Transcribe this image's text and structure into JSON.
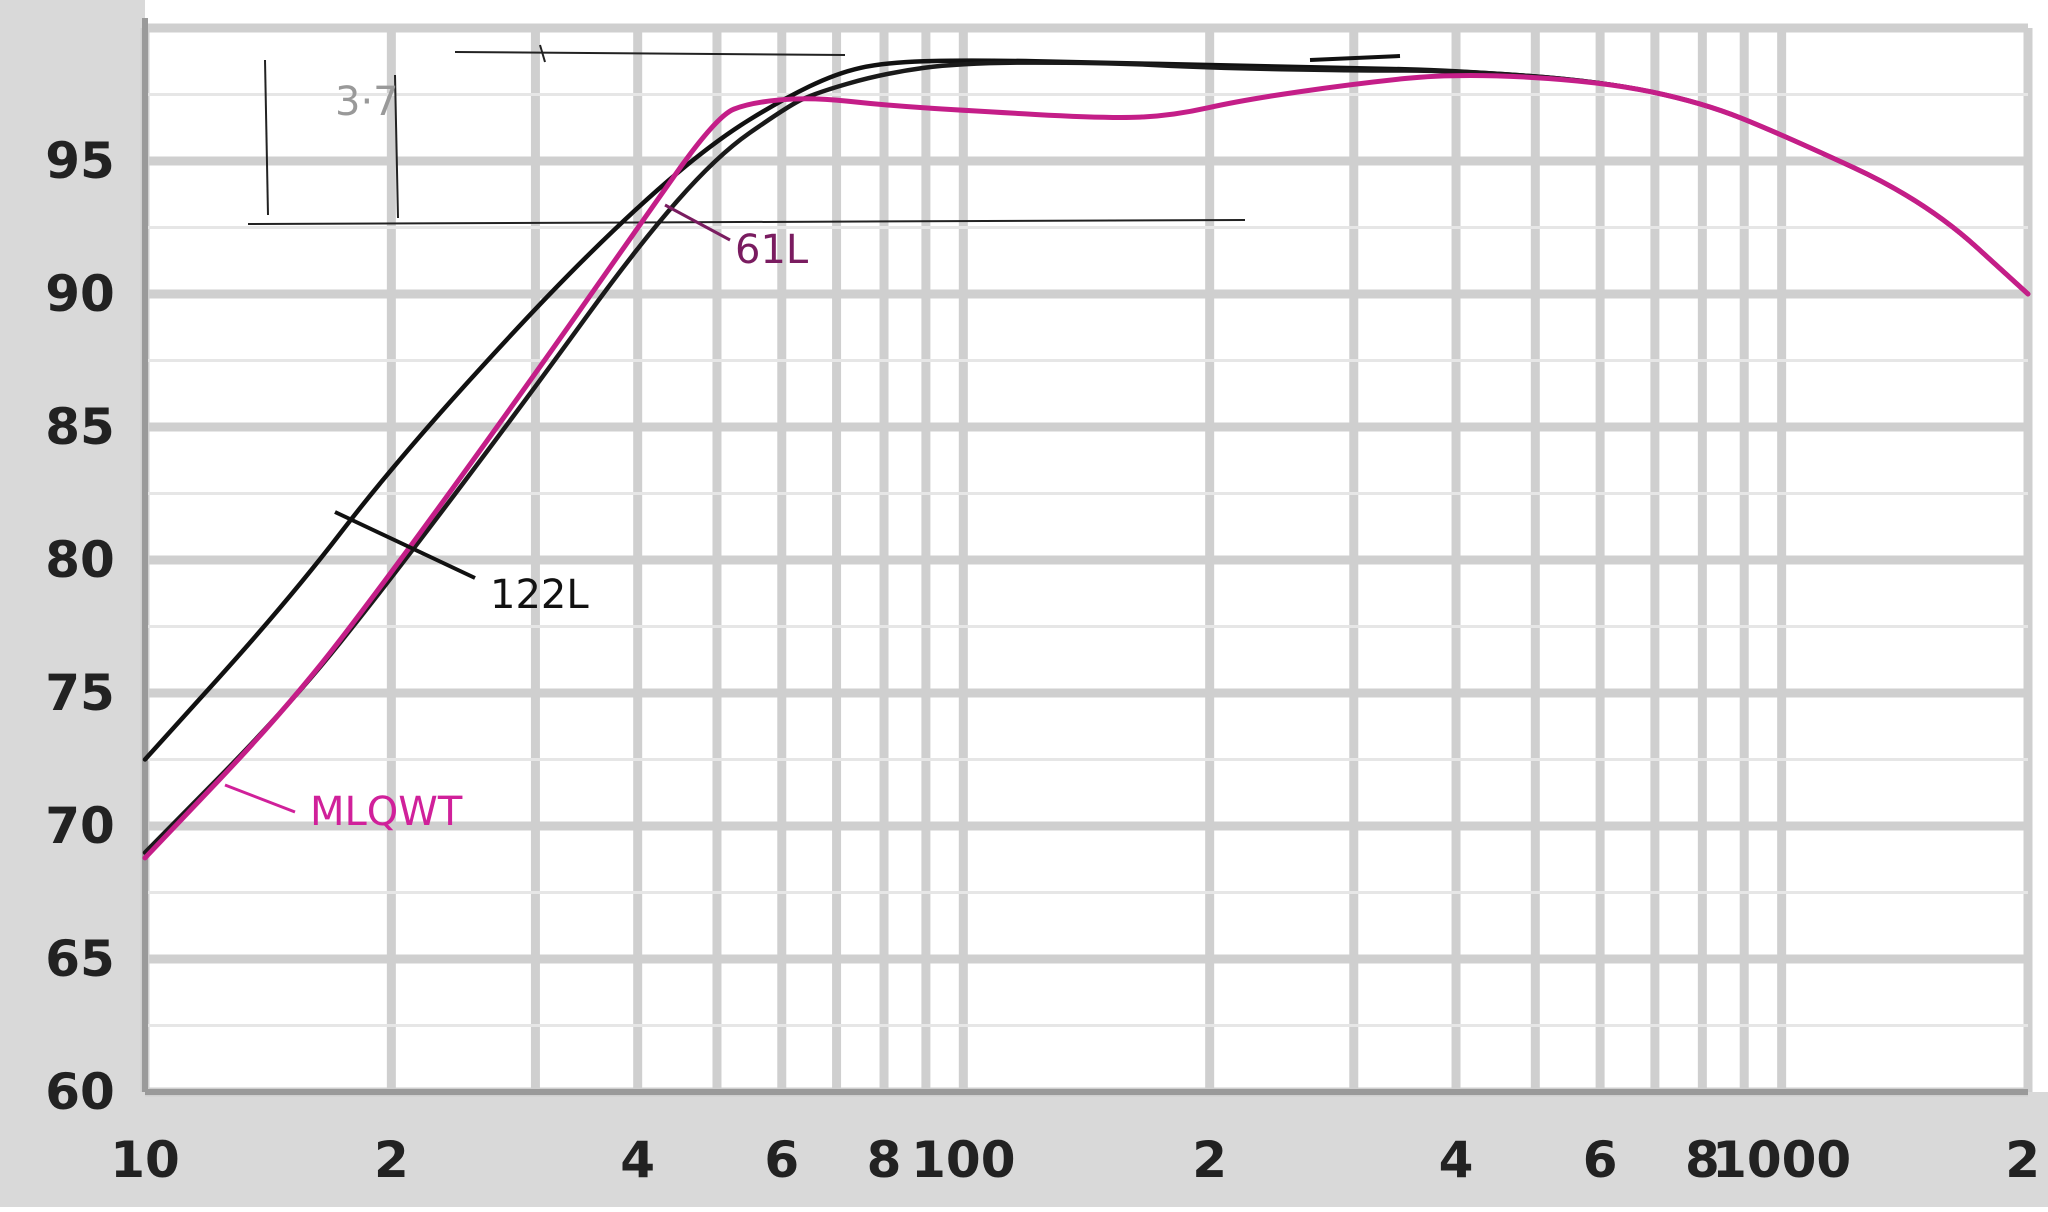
{
  "chart_data": {
    "type": "line",
    "title": "",
    "xlabel": "",
    "ylabel": "",
    "x_scale": "log",
    "xlim": [
      10,
      2000
    ],
    "ylim": [
      60,
      100
    ],
    "grid": true,
    "y_ticks": [
      {
        "value": 60,
        "label": "60"
      },
      {
        "value": 65,
        "label": "65"
      },
      {
        "value": 70,
        "label": "70"
      },
      {
        "value": 75,
        "label": "75"
      },
      {
        "value": 80,
        "label": "80"
      },
      {
        "value": 85,
        "label": "85"
      },
      {
        "value": 90,
        "label": "90"
      },
      {
        "value": 95,
        "label": "95"
      }
    ],
    "x_ticks": [
      {
        "value": 10,
        "label": "10"
      },
      {
        "value": 20,
        "label": "2"
      },
      {
        "value": 40,
        "label": "4"
      },
      {
        "value": 60,
        "label": "6"
      },
      {
        "value": 80,
        "label": "8"
      },
      {
        "value": 100,
        "label": "100"
      },
      {
        "value": 200,
        "label": "2"
      },
      {
        "value": 400,
        "label": "4"
      },
      {
        "value": 600,
        "label": "6"
      },
      {
        "value": 800,
        "label": "8"
      },
      {
        "value": 1000,
        "label": "1000"
      },
      {
        "value": 2000,
        "label": "2"
      }
    ],
    "series": [
      {
        "name": "122L",
        "color": "#111111",
        "points": [
          [
            10,
            72.5
          ],
          [
            15,
            78.5
          ],
          [
            20,
            83.5
          ],
          [
            30,
            89.5
          ],
          [
            40,
            93.3
          ],
          [
            50,
            95.8
          ],
          [
            60,
            97.3
          ],
          [
            70,
            98.3
          ],
          [
            80,
            98.7
          ],
          [
            100,
            98.8
          ],
          [
            150,
            98.7
          ],
          [
            200,
            98.6
          ],
          [
            300,
            98.5
          ],
          [
            400,
            98.4
          ],
          [
            600,
            98.0
          ],
          [
            800,
            97.2
          ],
          [
            1000,
            96.0
          ],
          [
            1500,
            93.5
          ],
          [
            2000,
            90.0
          ]
        ]
      },
      {
        "name": "61L",
        "color": "#1a1a1a",
        "points": [
          [
            10,
            69.0
          ],
          [
            15,
            74.5
          ],
          [
            20,
            79.3
          ],
          [
            30,
            86.5
          ],
          [
            40,
            91.8
          ],
          [
            50,
            95.2
          ],
          [
            60,
            96.9
          ],
          [
            65,
            97.5
          ],
          [
            80,
            98.3
          ],
          [
            100,
            98.7
          ],
          [
            150,
            98.7
          ],
          [
            200,
            98.5
          ],
          [
            300,
            98.4
          ],
          [
            400,
            98.4
          ],
          [
            600,
            98.0
          ],
          [
            800,
            97.2
          ],
          [
            1000,
            96.0
          ],
          [
            1500,
            93.5
          ],
          [
            2000,
            90.0
          ]
        ]
      },
      {
        "name": "MLQWT",
        "color": "#c41e88",
        "points": [
          [
            10,
            68.8
          ],
          [
            15,
            74.5
          ],
          [
            20,
            79.5
          ],
          [
            30,
            87.0
          ],
          [
            40,
            92.5
          ],
          [
            50,
            96.7
          ],
          [
            55,
            97.2
          ],
          [
            65,
            97.4
          ],
          [
            80,
            97.1
          ],
          [
            100,
            96.9
          ],
          [
            150,
            96.6
          ],
          [
            180,
            96.7
          ],
          [
            220,
            97.3
          ],
          [
            300,
            97.9
          ],
          [
            400,
            98.3
          ],
          [
            600,
            98.0
          ],
          [
            800,
            97.2
          ],
          [
            1000,
            96.0
          ],
          [
            1500,
            93.5
          ],
          [
            2000,
            90.0
          ]
        ]
      }
    ],
    "annotations": [
      {
        "text": "122L",
        "color": "#111111"
      },
      {
        "text": "61L",
        "color": "#7a1c60"
      },
      {
        "text": "MLQWT",
        "color": "#d0209a"
      },
      {
        "text": "3·7",
        "color": "#999999"
      }
    ]
  }
}
